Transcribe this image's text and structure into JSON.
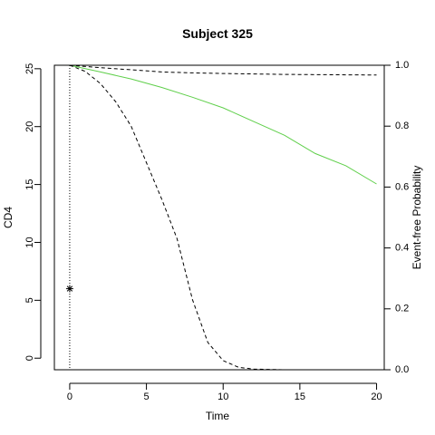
{
  "chart_data": {
    "type": "line",
    "title": "Subject 325",
    "xlabel": "Time",
    "ylabel_left": "CD4",
    "ylabel_right": "Event-free Probability",
    "xlim": [
      -1,
      20.5
    ],
    "ylim_left": [
      -1,
      25.3
    ],
    "ylim_right": [
      0,
      1
    ],
    "x_ticks": [
      0,
      5,
      10,
      15,
      20
    ],
    "y_left_ticks": [
      0,
      5,
      10,
      15,
      20,
      25
    ],
    "y_right_ticks": [
      "0.0",
      "0.2",
      "0.4",
      "0.6",
      "0.8",
      "1.0"
    ],
    "grid": false,
    "observed": [
      {
        "x": 0,
        "y": 6
      }
    ],
    "vline_x": 0,
    "series": [
      {
        "values": [
          {
            "x": 0,
            "y": 1.0
          },
          {
            "x": 2,
            "y": 0.978
          },
          {
            "x": 4,
            "y": 0.955
          },
          {
            "x": 6,
            "y": 0.927
          },
          {
            "x": 8,
            "y": 0.895
          },
          {
            "x": 10,
            "y": 0.86
          },
          {
            "x": 12,
            "y": 0.815
          },
          {
            "x": 14,
            "y": 0.77
          },
          {
            "x": 16,
            "y": 0.71
          },
          {
            "x": 18,
            "y": 0.67
          },
          {
            "x": 20,
            "y": 0.61
          }
        ],
        "color": "#5fcf4a"
      },
      {
        "values": [
          {
            "x": 0,
            "y": 1.0
          },
          {
            "x": 2,
            "y": 0.992
          },
          {
            "x": 4,
            "y": 0.985
          },
          {
            "x": 6,
            "y": 0.978
          },
          {
            "x": 8,
            "y": 0.975
          },
          {
            "x": 10,
            "y": 0.973
          },
          {
            "x": 14,
            "y": 0.97
          },
          {
            "x": 20,
            "y": 0.968
          }
        ],
        "color": "#000000"
      },
      {
        "values": [
          {
            "x": 0,
            "y": 1.0
          },
          {
            "x": 1,
            "y": 0.98
          },
          {
            "x": 2,
            "y": 0.94
          },
          {
            "x": 3,
            "y": 0.88
          },
          {
            "x": 4,
            "y": 0.8
          },
          {
            "x": 5,
            "y": 0.68
          },
          {
            "x": 6,
            "y": 0.56
          },
          {
            "x": 7,
            "y": 0.43
          },
          {
            "x": 8,
            "y": 0.23
          },
          {
            "x": 9,
            "y": 0.09
          },
          {
            "x": 10,
            "y": 0.03
          },
          {
            "x": 11,
            "y": 0.008
          },
          {
            "x": 12,
            "y": 0.002
          },
          {
            "x": 14,
            "y": 0.0
          },
          {
            "x": 20,
            "y": 0.0
          }
        ],
        "color": "#000000"
      }
    ]
  }
}
